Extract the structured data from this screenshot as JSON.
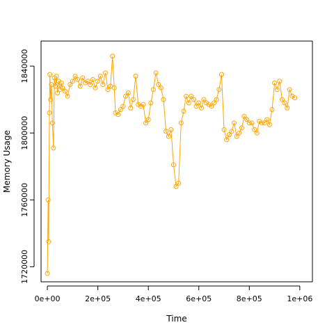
{
  "chart_data": {
    "type": "line",
    "title": "",
    "xlabel": "Time",
    "ylabel": "Memory Usage",
    "xlim": [
      -25000,
      1050000
    ],
    "ylim": [
      1711000,
      1855000
    ],
    "x_ticks": [
      0,
      200000,
      400000,
      600000,
      800000,
      1000000
    ],
    "x_tick_labels": [
      "0e+00",
      "2e+05",
      "4e+05",
      "6e+05",
      "8e+05",
      "1e+06"
    ],
    "y_ticks": [
      1720000,
      1760000,
      1800000,
      1840000
    ],
    "y_tick_labels": [
      "1720000",
      "1760000",
      "1800000",
      "1840000"
    ],
    "grid": false,
    "legend": "none",
    "marker": "open-circle",
    "series_color": "#FFA500",
    "series": [
      {
        "x": [
          0,
          3000,
          5000,
          8000,
          10000,
          13000,
          16000,
          20000,
          24000,
          28000,
          32000,
          36000,
          40000,
          45000,
          50000,
          55000,
          60000,
          70000,
          80000,
          90000,
          100000,
          110000,
          120000,
          130000,
          140000,
          150000,
          160000,
          170000,
          180000,
          190000,
          200000,
          210000,
          220000,
          230000,
          240000,
          250000,
          258000,
          265000,
          270000,
          280000,
          290000,
          300000,
          310000,
          320000,
          330000,
          340000,
          350000,
          360000,
          370000,
          380000,
          390000,
          400000,
          410000,
          420000,
          430000,
          440000,
          450000,
          460000,
          470000,
          480000,
          490000,
          500000,
          510000,
          520000,
          530000,
          540000,
          550000,
          560000,
          570000,
          580000,
          590000,
          600000,
          610000,
          620000,
          630000,
          640000,
          650000,
          660000,
          670000,
          680000,
          690000,
          700000,
          710000,
          720000,
          730000,
          740000,
          750000,
          760000,
          770000,
          780000,
          790000,
          800000,
          810000,
          820000,
          830000,
          840000,
          850000,
          860000,
          870000,
          880000,
          890000,
          900000,
          910000,
          920000,
          930000,
          940000,
          950000,
          960000,
          970000,
          980000
        ],
        "y": [
          1716000,
          1760000,
          1735000,
          1812000,
          1835000,
          1820000,
          1829000,
          1806000,
          1791000,
          1833000,
          1828000,
          1834000,
          1824000,
          1831000,
          1826000,
          1830000,
          1827000,
          1825000,
          1822000,
          1829000,
          1831000,
          1834000,
          1832000,
          1828000,
          1833000,
          1830000,
          1831000,
          1829000,
          1832000,
          1827000,
          1831000,
          1834000,
          1829000,
          1836000,
          1826000,
          1828000,
          1846000,
          1827000,
          1812000,
          1811000,
          1814000,
          1816000,
          1822000,
          1824000,
          1815000,
          1820000,
          1834000,
          1817000,
          1816000,
          1817000,
          1806000,
          1808000,
          1818000,
          1826000,
          1836000,
          1829000,
          1827000,
          1820000,
          1801000,
          1798000,
          1802000,
          1781000,
          1768000,
          1770000,
          1806000,
          1813000,
          1822000,
          1818000,
          1822000,
          1820000,
          1816000,
          1818000,
          1815000,
          1820000,
          1818000,
          1817000,
          1816000,
          1818000,
          1820000,
          1826000,
          1835000,
          1802000,
          1796000,
          1799000,
          1801000,
          1806000,
          1798000,
          1800000,
          1803000,
          1810000,
          1808000,
          1806000,
          1806000,
          1802000,
          1800000,
          1807000,
          1806000,
          1806000,
          1808000,
          1805000,
          1814000,
          1830000,
          1826000,
          1831000,
          1820000,
          1818000,
          1815000,
          1826000,
          1822000,
          1821000
        ]
      }
    ]
  }
}
